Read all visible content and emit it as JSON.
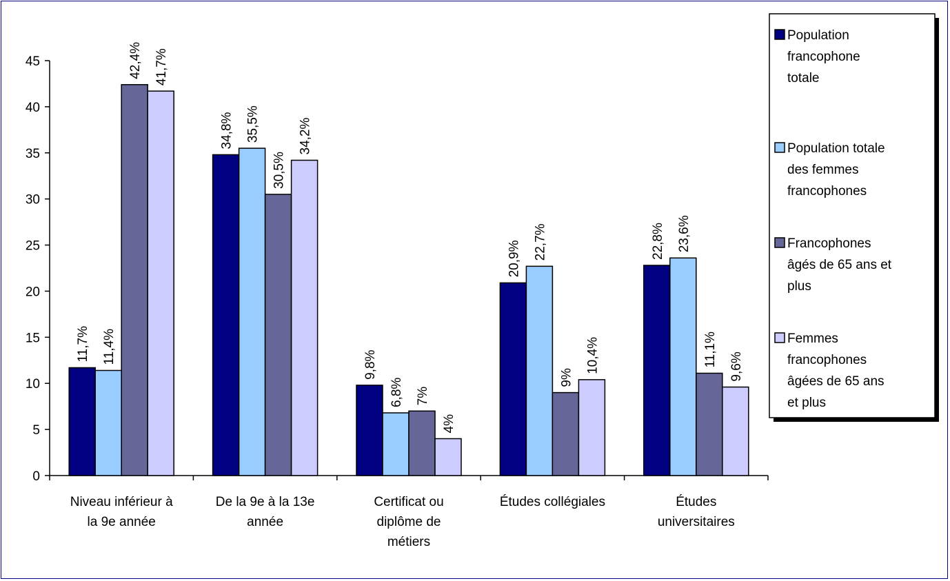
{
  "chart_data": {
    "type": "bar",
    "title": "",
    "xlabel": "",
    "ylabel": "",
    "ylim": [
      0,
      45
    ],
    "yticks": [
      0,
      5,
      10,
      15,
      20,
      25,
      30,
      35,
      40,
      45
    ],
    "grid": false,
    "legend_position": "right",
    "categories": [
      [
        "Niveau inférieur à",
        "la 9e année"
      ],
      [
        "De la 9e à la 13e",
        "année"
      ],
      [
        "Certificat ou",
        "diplôme de",
        "métiers"
      ],
      [
        "Études collégiales"
      ],
      [
        "Études",
        "universitaires"
      ]
    ],
    "series": [
      {
        "name": [
          "Population",
          "francophone",
          "totale"
        ],
        "color": "#000080",
        "values": [
          11.7,
          34.8,
          9.8,
          20.9,
          22.8
        ],
        "labels": [
          "11,7%",
          "34,8%",
          "9,8%",
          "20,9%",
          "22,8%"
        ]
      },
      {
        "name": [
          "Population totale",
          "des femmes",
          "francophones"
        ],
        "color": "#99CCFF",
        "values": [
          11.4,
          35.5,
          6.8,
          22.7,
          23.6
        ],
        "labels": [
          "11,4%",
          "35,5%",
          "6,8%",
          "22,7%",
          "23,6%"
        ]
      },
      {
        "name": [
          "Francophones",
          "âgés de 65 ans et",
          "plus"
        ],
        "color": "#666699",
        "values": [
          42.4,
          30.5,
          7.0,
          9.0,
          11.1
        ],
        "labels": [
          "42,4%",
          "30,5%",
          "7%",
          "9%",
          "11,1%"
        ]
      },
      {
        "name": [
          "Femmes",
          "francophones",
          "âgées de 65 ans",
          "et plus"
        ],
        "color": "#CCCCFF",
        "values": [
          41.7,
          34.2,
          4.0,
          10.4,
          9.6
        ],
        "labels": [
          "41,7%",
          "34,2%",
          "4%",
          "10,4%",
          "9,6%"
        ]
      }
    ]
  }
}
